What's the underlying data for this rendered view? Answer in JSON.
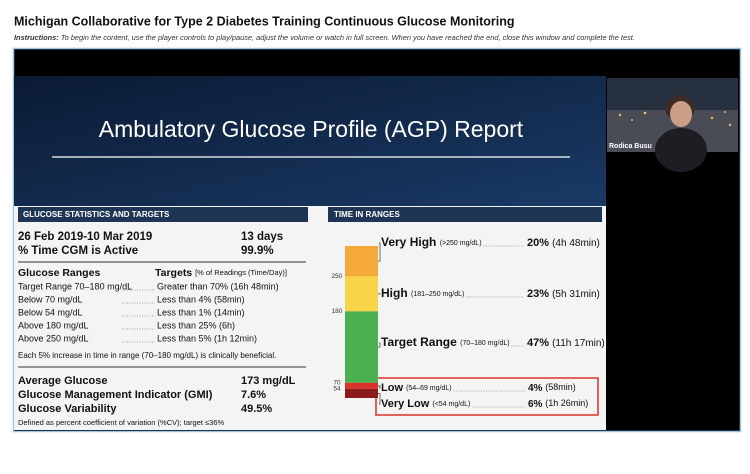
{
  "header": {
    "title": "Michigan Collaborative for Type 2 Diabetes Training Continuous Glucose Monitoring",
    "instructions_label": "Instructions:",
    "instructions_text": "To begin the content, use the player controls to play/pause, adjust the volume or watch in full screen. When you have reached the end, close this window and complete the test."
  },
  "slide": {
    "title": "Ambulatory Glucose Profile (AGP) Report"
  },
  "webcam": {
    "name": "Rodica Busu"
  },
  "stats": {
    "heading": "GLUCOSE STATISTICS AND TARGETS",
    "period": "26 Feb 2019-10 Mar 2019",
    "days": "13 days",
    "cgm_label": "% Time CGM is Active",
    "cgm_value": "99.9%",
    "ranges_header": "Glucose Ranges",
    "targets_header": "Targets",
    "targets_note": "[% of Readings (Time/Day)]",
    "rows": [
      [
        "Target Range 70–180 mg/dL",
        "Greater than 70% (16h 48min)"
      ],
      [
        "Below 70 mg/dL",
        "Less than 4% (58min)"
      ],
      [
        "Below 54 mg/dL",
        "Less than 1% (14min)"
      ],
      [
        "Above 180 mg/dL",
        "Less than 25% (6h)"
      ],
      [
        "Above 250 mg/dL",
        "Less than 5% (1h 12min)"
      ]
    ],
    "note": "Each 5% increase in time in range (70–180 mg/dL) is clinically beneficial.",
    "metrics": [
      [
        "Average Glucose",
        "173 mg/dL"
      ],
      [
        "Glucose Management Indicator (GMI)",
        "7.6%"
      ],
      [
        "Glucose Variability",
        "49.5%"
      ]
    ],
    "footnote": "Defined as percent coefficient of variation (%CV); target ≤36%"
  },
  "tir": {
    "heading": "TIME IN RANGES",
    "ticks": [
      250,
      180,
      70,
      54
    ],
    "ranges": [
      {
        "name": "Very High",
        "range": "(>250 mg/dL)",
        "value": 20,
        "value_label": "20%",
        "time": "(4h 48min)",
        "color": "#f5a93a"
      },
      {
        "name": "High",
        "range": "(181–250 mg/dL)",
        "value": 23,
        "value_label": "23%",
        "time": "(5h 31min)",
        "color": "#f7d44a"
      },
      {
        "name": "Target Range",
        "range": "(70–180 mg/dL)",
        "value": 47,
        "value_label": "47%",
        "time": "(11h 17min)",
        "color": "#4caf50"
      },
      {
        "name": "Low",
        "range": "(54–69 mg/dL)",
        "value": 4,
        "value_label": "4%",
        "time": "(58min)",
        "color": "#d9342b"
      },
      {
        "name": "Very Low",
        "range": "(<54 mg/dL)",
        "value": 6,
        "value_label": "6%",
        "time": "(1h 26min)",
        "color": "#8b1a1a"
      }
    ]
  }
}
